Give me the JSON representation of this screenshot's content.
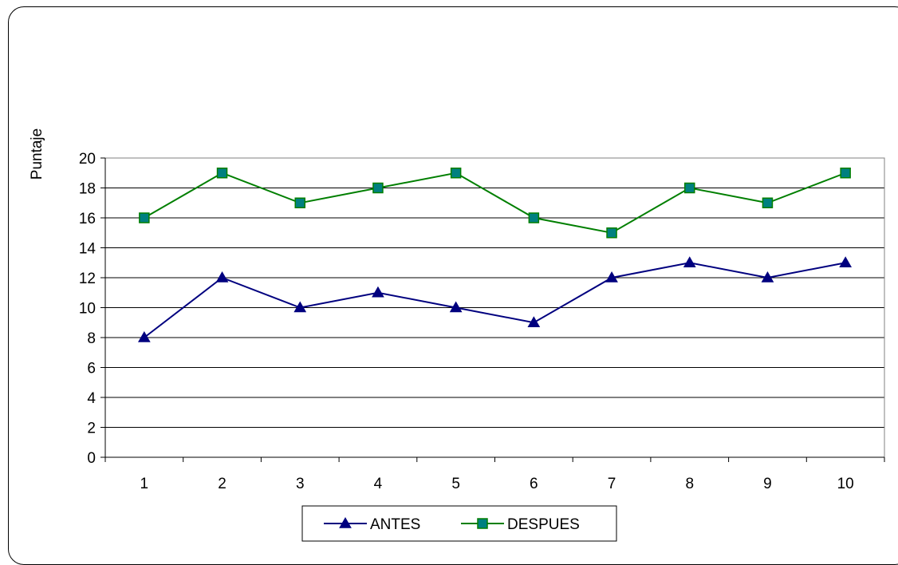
{
  "chart_data": {
    "type": "line",
    "title": "",
    "xlabel": "",
    "ylabel": "Puntaje",
    "categories": [
      "1",
      "2",
      "3",
      "4",
      "5",
      "6",
      "7",
      "8",
      "9",
      "10"
    ],
    "ylim": [
      0,
      20
    ],
    "yticks": [
      "0",
      "2",
      "4",
      "6",
      "8",
      "10",
      "12",
      "14",
      "16",
      "18",
      "20"
    ],
    "grid": "horizontal",
    "legend_position": "bottom",
    "series": [
      {
        "name": "ANTES",
        "values": [
          8,
          12,
          10,
          11,
          10,
          9,
          12,
          13,
          12,
          13
        ],
        "color": "#00007f",
        "marker": "triangle"
      },
      {
        "name": "DESPUES",
        "values": [
          16,
          19,
          17,
          18,
          19,
          16,
          15,
          18,
          17,
          19
        ],
        "color": "#007f00",
        "marker_fill": "#008080",
        "marker": "square"
      }
    ]
  }
}
